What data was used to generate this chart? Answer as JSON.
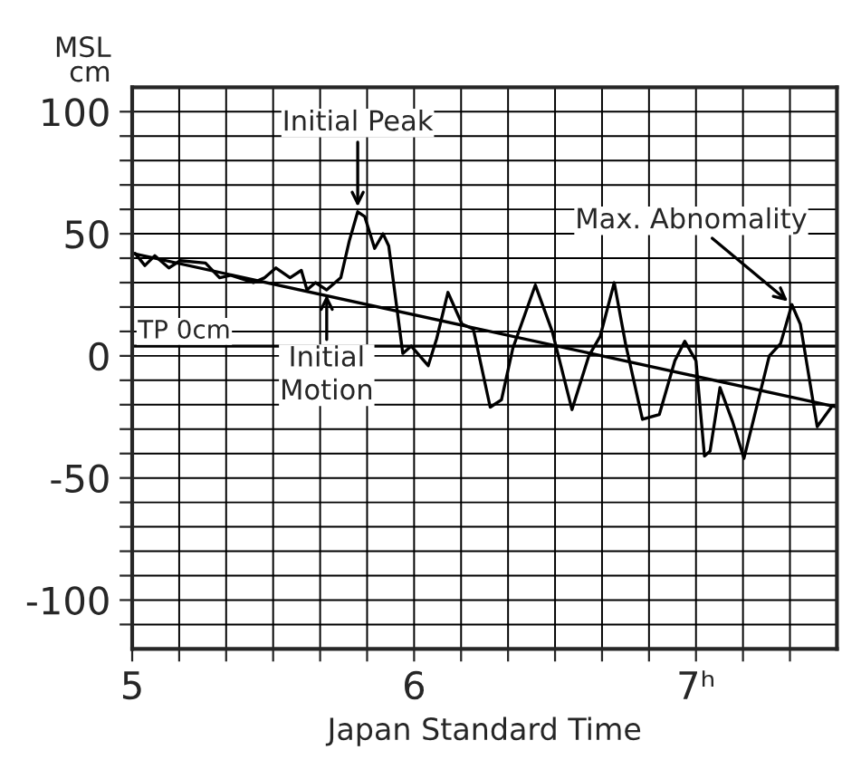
{
  "chart_data": {
    "type": "line",
    "xlabel": "Japan Standard Time",
    "ylabel": "MSL\ncm",
    "series": [
      {
        "color": "#000000",
        "x": [
          5.01,
          5.045,
          5.08,
          5.13,
          5.17,
          5.26,
          5.31,
          5.35,
          5.43,
          5.47,
          5.51,
          5.56,
          5.6,
          5.62,
          5.65,
          5.69,
          5.74,
          5.77,
          5.8,
          5.825,
          5.86,
          5.89,
          5.91,
          5.96,
          5.99,
          6.05,
          6.08,
          6.12,
          6.17,
          6.21,
          6.27,
          6.31,
          6.35,
          6.43,
          6.49,
          6.56,
          6.62,
          6.66,
          6.71,
          6.75,
          6.81,
          6.87,
          6.925,
          6.96,
          7.0,
          7.03,
          7.05,
          7.085,
          7.13,
          7.17,
          7.26,
          7.3,
          7.34,
          7.37,
          7.43,
          7.48
        ],
        "values": [
          42,
          37,
          41,
          36,
          39,
          38,
          32,
          33,
          30,
          32,
          36,
          32,
          35,
          27,
          30,
          27,
          32,
          47,
          59,
          57,
          44,
          50,
          45,
          1,
          4,
          -4,
          7,
          26,
          13,
          11,
          -21,
          -18,
          3,
          29,
          10,
          -22,
          0,
          8,
          30,
          5,
          -26,
          -24,
          -2,
          6,
          -2,
          -41,
          -39,
          -13,
          -27,
          -42,
          0,
          5,
          21,
          13,
          -29,
          -21
        ]
      },
      {
        "color": "#000000",
        "x": [
          5.0,
          7.5
        ],
        "values": [
          42,
          -21
        ]
      }
    ],
    "ref_lines": [
      {
        "axis": "y",
        "value": 4,
        "label": "TP 0cm",
        "color": "#000000"
      }
    ],
    "annotations": [
      {
        "text": "Initial Peak",
        "x": 5.8,
        "y": 59
      },
      {
        "text": "Initial\nMotion",
        "x": 5.69,
        "y": 27
      },
      {
        "text": "Max. Abnomality",
        "x": 7.34,
        "y": 21
      }
    ],
    "xlim": [
      5,
      7.5
    ],
    "ylim": [
      -120,
      110
    ],
    "xticks": [
      5,
      {
        "value": 5.1667,
        "label": null
      },
      {
        "value": 5.3333,
        "label": null
      },
      {
        "value": 5.5,
        "label": null
      },
      {
        "value": 5.6667,
        "label": null
      },
      {
        "value": 5.8333,
        "label": null
      },
      6,
      {
        "value": 6.1667,
        "label": null
      },
      {
        "value": 6.3333,
        "label": null
      },
      {
        "value": 6.5,
        "label": null
      },
      {
        "value": 6.6667,
        "label": null
      },
      {
        "value": 6.8333,
        "label": null
      },
      {
        "value": 7,
        "label": "7ʰ"
      },
      {
        "value": 7.1667,
        "label": null
      },
      {
        "value": 7.3333,
        "label": null
      }
    ],
    "yticks": [
      {
        "value": -110,
        "label": null
      },
      -100,
      {
        "value": -90,
        "label": null
      },
      {
        "value": -80,
        "label": null
      },
      {
        "value": -70,
        "label": null
      },
      {
        "value": -60,
        "label": null
      },
      -50,
      {
        "value": -40,
        "label": null
      },
      {
        "value": -30,
        "label": null
      },
      {
        "value": -20,
        "label": null
      },
      {
        "value": -10,
        "label": null
      },
      0,
      {
        "value": 10,
        "label": null
      },
      {
        "value": 20,
        "label": null
      },
      {
        "value": 30,
        "label": null
      },
      {
        "value": 40,
        "label": null
      },
      50,
      {
        "value": 60,
        "label": null
      },
      {
        "value": 70,
        "label": null
      },
      {
        "value": 80,
        "label": null
      },
      {
        "value": 90,
        "label": null
      },
      100
    ],
    "grid": true,
    "marker": "none",
    "line_style": "solid"
  }
}
